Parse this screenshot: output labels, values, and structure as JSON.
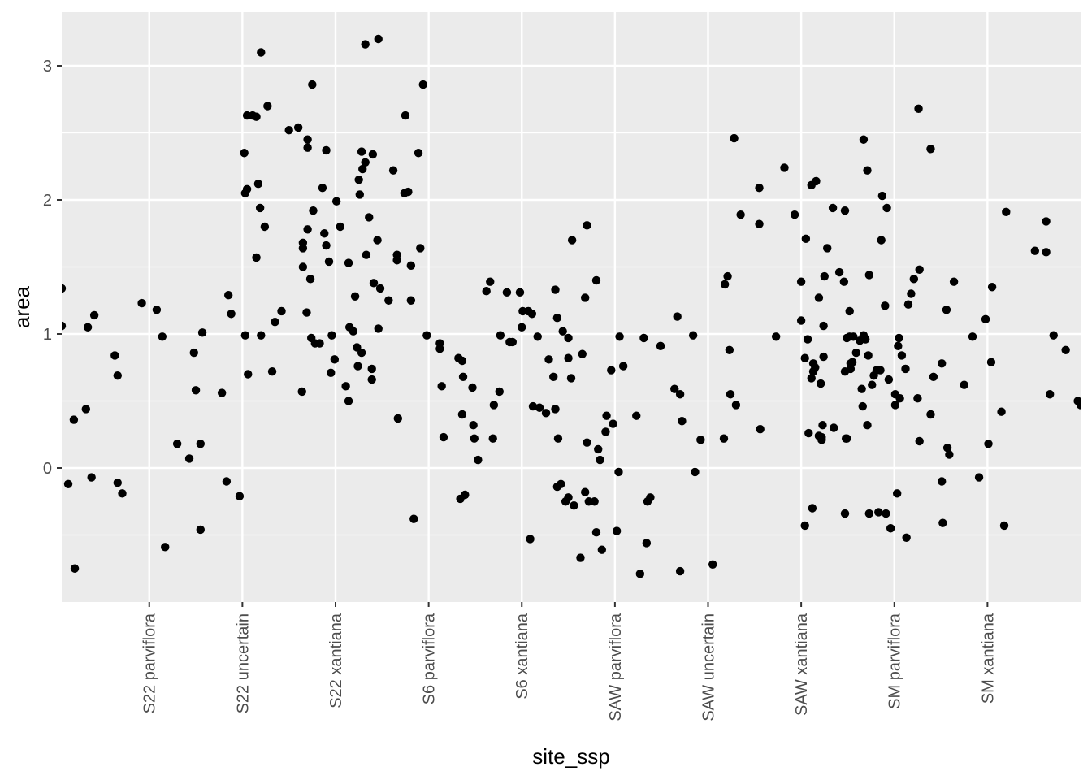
{
  "chart_data": {
    "type": "scatter",
    "title": "",
    "xlabel": "site_ssp",
    "ylabel": "area",
    "categories": [
      "S22 parviflora",
      "S22 uncertain",
      "S22 xantiana",
      "S6 parviflora",
      "S6 xantiana",
      "SAW parviflora",
      "SAW uncertain",
      "SAW xantiana",
      "SM parviflora",
      "SM xantiana"
    ],
    "xlim": [
      0.06,
      11.0
    ],
    "ylim": [
      -1.0,
      3.4
    ],
    "yticks": [
      0,
      1,
      2,
      3
    ],
    "grid": true,
    "legend": "none",
    "colors": {
      "panel": "#ebebeb",
      "grid": "#ffffff",
      "point": "#000000"
    },
    "points": [
      [
        0.06,
        1.34
      ],
      [
        0.06,
        1.06
      ],
      [
        0.13,
        -0.12
      ],
      [
        0.19,
        0.36
      ],
      [
        0.2,
        -0.75
      ],
      [
        0.32,
        0.44
      ],
      [
        0.34,
        1.05
      ],
      [
        0.38,
        -0.07
      ],
      [
        0.41,
        1.14
      ],
      [
        0.63,
        0.84
      ],
      [
        0.66,
        0.69
      ],
      [
        0.66,
        -0.11
      ],
      [
        0.71,
        -0.19
      ],
      [
        0.92,
        1.23
      ],
      [
        1.08,
        1.18
      ],
      [
        1.14,
        0.98
      ],
      [
        1.17,
        -0.59
      ],
      [
        1.3,
        0.18
      ],
      [
        1.43,
        0.07
      ],
      [
        1.48,
        0.86
      ],
      [
        1.5,
        0.58
      ],
      [
        1.55,
        0.18
      ],
      [
        1.55,
        -0.46
      ],
      [
        1.57,
        1.01
      ],
      [
        1.78,
        0.56
      ],
      [
        1.83,
        -0.1
      ],
      [
        1.85,
        1.29
      ],
      [
        1.88,
        1.15
      ],
      [
        1.97,
        -0.21
      ],
      [
        2.02,
        2.35
      ],
      [
        2.03,
        0.99
      ],
      [
        2.03,
        2.05
      ],
      [
        2.05,
        2.08
      ],
      [
        2.05,
        2.63
      ],
      [
        2.06,
        0.7
      ],
      [
        2.11,
        2.63
      ],
      [
        2.15,
        2.62
      ],
      [
        2.15,
        1.57
      ],
      [
        2.17,
        2.12
      ],
      [
        2.19,
        1.94
      ],
      [
        2.2,
        3.1
      ],
      [
        2.2,
        0.99
      ],
      [
        2.24,
        1.8
      ],
      [
        2.27,
        2.7
      ],
      [
        2.32,
        0.72
      ],
      [
        2.35,
        1.09
      ],
      [
        2.42,
        1.17
      ],
      [
        2.5,
        2.52
      ],
      [
        2.6,
        2.54
      ],
      [
        2.64,
        0.57
      ],
      [
        2.65,
        1.68
      ],
      [
        2.65,
        1.64
      ],
      [
        2.65,
        1.5
      ],
      [
        2.69,
        1.16
      ],
      [
        2.7,
        1.78
      ],
      [
        2.7,
        2.39
      ],
      [
        2.7,
        2.45
      ],
      [
        2.73,
        1.41
      ],
      [
        2.74,
        0.97
      ],
      [
        2.75,
        2.86
      ],
      [
        2.76,
        1.92
      ],
      [
        2.78,
        0.93
      ],
      [
        2.83,
        0.93
      ],
      [
        2.86,
        2.09
      ],
      [
        2.88,
        1.75
      ],
      [
        2.9,
        1.66
      ],
      [
        2.9,
        2.37
      ],
      [
        2.93,
        1.54
      ],
      [
        2.95,
        0.71
      ],
      [
        2.96,
        0.99
      ],
      [
        2.99,
        0.81
      ],
      [
        3.01,
        1.99
      ],
      [
        3.05,
        1.8
      ],
      [
        3.11,
        0.61
      ],
      [
        3.14,
        1.53
      ],
      [
        3.14,
        0.5
      ],
      [
        3.15,
        1.05
      ],
      [
        3.19,
        1.02
      ],
      [
        3.21,
        1.28
      ],
      [
        3.23,
        0.9
      ],
      [
        3.24,
        0.76
      ],
      [
        3.25,
        2.15
      ],
      [
        3.26,
        2.04
      ],
      [
        3.28,
        0.86
      ],
      [
        3.28,
        2.36
      ],
      [
        3.29,
        2.23
      ],
      [
        3.32,
        2.28
      ],
      [
        3.32,
        3.16
      ],
      [
        3.33,
        1.59
      ],
      [
        3.36,
        1.87
      ],
      [
        3.39,
        0.74
      ],
      [
        3.39,
        0.66
      ],
      [
        3.4,
        2.34
      ],
      [
        3.41,
        1.38
      ],
      [
        3.45,
        1.7
      ],
      [
        3.46,
        1.04
      ],
      [
        3.46,
        3.2
      ],
      [
        3.48,
        1.34
      ],
      [
        3.57,
        1.25
      ],
      [
        3.62,
        2.22
      ],
      [
        3.66,
        1.59
      ],
      [
        3.66,
        1.55
      ],
      [
        3.67,
        0.37
      ],
      [
        3.74,
        2.05
      ],
      [
        3.75,
        2.63
      ],
      [
        3.78,
        2.06
      ],
      [
        3.81,
        1.51
      ],
      [
        3.81,
        1.25
      ],
      [
        3.84,
        -0.38
      ],
      [
        3.89,
        2.35
      ],
      [
        3.91,
        1.64
      ],
      [
        3.94,
        2.86
      ],
      [
        3.98,
        0.99
      ],
      [
        4.12,
        0.93
      ],
      [
        4.12,
        0.89
      ],
      [
        4.14,
        0.61
      ],
      [
        4.16,
        0.23
      ],
      [
        4.32,
        0.82
      ],
      [
        4.34,
        -0.23
      ],
      [
        4.36,
        0.8
      ],
      [
        4.36,
        0.4
      ],
      [
        4.37,
        0.68
      ],
      [
        4.39,
        -0.2
      ],
      [
        4.47,
        0.6
      ],
      [
        4.48,
        0.32
      ],
      [
        4.49,
        0.22
      ],
      [
        4.53,
        0.06
      ],
      [
        4.62,
        1.32
      ],
      [
        4.66,
        1.39
      ],
      [
        4.69,
        0.22
      ],
      [
        4.7,
        0.47
      ],
      [
        4.76,
        0.57
      ],
      [
        4.77,
        0.99
      ],
      [
        4.84,
        1.31
      ],
      [
        4.87,
        0.94
      ],
      [
        4.9,
        0.94
      ],
      [
        4.98,
        1.31
      ],
      [
        5.0,
        1.05
      ],
      [
        5.01,
        1.17
      ],
      [
        5.07,
        1.17
      ],
      [
        5.09,
        -0.53
      ],
      [
        5.11,
        1.15
      ],
      [
        5.12,
        0.46
      ],
      [
        5.17,
        0.98
      ],
      [
        5.19,
        0.45
      ],
      [
        5.26,
        0.41
      ],
      [
        5.29,
        0.81
      ],
      [
        5.34,
        0.68
      ],
      [
        5.36,
        1.33
      ],
      [
        5.36,
        0.44
      ],
      [
        5.38,
        1.12
      ],
      [
        5.38,
        -0.14
      ],
      [
        5.39,
        0.22
      ],
      [
        5.42,
        -0.12
      ],
      [
        5.44,
        1.02
      ],
      [
        5.47,
        -0.25
      ],
      [
        5.5,
        0.97
      ],
      [
        5.5,
        0.82
      ],
      [
        5.5,
        -0.22
      ],
      [
        5.53,
        0.67
      ],
      [
        5.54,
        1.7
      ],
      [
        5.56,
        -0.28
      ],
      [
        5.63,
        -0.67
      ],
      [
        5.65,
        0.85
      ],
      [
        5.68,
        -0.18
      ],
      [
        5.68,
        1.27
      ],
      [
        5.7,
        1.81
      ],
      [
        5.7,
        0.19
      ],
      [
        5.72,
        -0.25
      ],
      [
        5.78,
        -0.25
      ],
      [
        5.8,
        1.4
      ],
      [
        5.8,
        -0.48
      ],
      [
        5.82,
        0.14
      ],
      [
        5.84,
        0.06
      ],
      [
        5.86,
        -0.61
      ],
      [
        5.9,
        0.27
      ],
      [
        5.91,
        0.39
      ],
      [
        5.96,
        0.73
      ],
      [
        5.98,
        0.33
      ],
      [
        6.02,
        -0.47
      ],
      [
        6.04,
        -0.03
      ],
      [
        6.05,
        0.98
      ],
      [
        6.09,
        0.76
      ],
      [
        6.23,
        0.39
      ],
      [
        6.27,
        -0.79
      ],
      [
        6.31,
        0.97
      ],
      [
        6.34,
        -0.56
      ],
      [
        6.35,
        -0.25
      ],
      [
        6.38,
        -0.22
      ],
      [
        6.49,
        0.91
      ],
      [
        6.64,
        0.59
      ],
      [
        6.67,
        1.13
      ],
      [
        6.7,
        0.55
      ],
      [
        6.7,
        -0.77
      ],
      [
        6.72,
        0.35
      ],
      [
        6.84,
        0.99
      ],
      [
        6.86,
        -0.03
      ],
      [
        6.92,
        0.21
      ],
      [
        7.05,
        -0.72
      ],
      [
        7.17,
        0.22
      ],
      [
        7.18,
        1.37
      ],
      [
        7.21,
        1.43
      ],
      [
        7.23,
        0.88
      ],
      [
        7.24,
        0.55
      ],
      [
        7.28,
        2.46
      ],
      [
        7.3,
        0.47
      ],
      [
        7.35,
        1.89
      ],
      [
        7.55,
        2.09
      ],
      [
        7.55,
        1.82
      ],
      [
        7.56,
        0.29
      ],
      [
        7.73,
        0.98
      ],
      [
        7.82,
        2.24
      ],
      [
        7.93,
        1.89
      ],
      [
        8.0,
        1.1
      ],
      [
        8.0,
        1.39
      ],
      [
        8.04,
        -0.43
      ],
      [
        8.04,
        0.82
      ],
      [
        8.05,
        1.71
      ],
      [
        8.07,
        0.96
      ],
      [
        8.08,
        0.26
      ],
      [
        8.11,
        2.11
      ],
      [
        8.11,
        0.67
      ],
      [
        8.12,
        -0.3
      ],
      [
        8.13,
        0.78
      ],
      [
        8.13,
        0.72
      ],
      [
        8.15,
        0.75
      ],
      [
        8.16,
        2.14
      ],
      [
        8.19,
        0.24
      ],
      [
        8.19,
        1.27
      ],
      [
        8.21,
        0.63
      ],
      [
        8.22,
        0.23
      ],
      [
        8.22,
        0.21
      ],
      [
        8.23,
        0.32
      ],
      [
        8.24,
        0.83
      ],
      [
        8.24,
        1.06
      ],
      [
        8.25,
        1.43
      ],
      [
        8.28,
        1.64
      ],
      [
        8.34,
        1.94
      ],
      [
        8.35,
        0.3
      ],
      [
        8.41,
        1.46
      ],
      [
        8.46,
        1.39
      ],
      [
        8.47,
        1.92
      ],
      [
        8.47,
        0.72
      ],
      [
        8.47,
        -0.34
      ],
      [
        8.48,
        0.22
      ],
      [
        8.49,
        0.22
      ],
      [
        8.49,
        0.97
      ],
      [
        8.52,
        0.98
      ],
      [
        8.52,
        1.17
      ],
      [
        8.53,
        0.74
      ],
      [
        8.53,
        0.78
      ],
      [
        8.55,
        0.79
      ],
      [
        8.56,
        0.98
      ],
      [
        8.59,
        0.86
      ],
      [
        8.63,
        0.95
      ],
      [
        8.65,
        0.59
      ],
      [
        8.66,
        0.46
      ],
      [
        8.67,
        0.99
      ],
      [
        8.67,
        2.45
      ],
      [
        8.69,
        0.96
      ],
      [
        8.71,
        0.32
      ],
      [
        8.71,
        2.22
      ],
      [
        8.72,
        0.84
      ],
      [
        8.73,
        -0.34
      ],
      [
        8.73,
        1.44
      ],
      [
        8.76,
        0.62
      ],
      [
        8.78,
        0.69
      ],
      [
        8.81,
        0.73
      ],
      [
        8.83,
        -0.33
      ],
      [
        8.85,
        0.73
      ],
      [
        8.86,
        1.7
      ],
      [
        8.87,
        2.03
      ],
      [
        8.9,
        1.21
      ],
      [
        8.91,
        -0.34
      ],
      [
        8.92,
        1.94
      ],
      [
        8.94,
        0.66
      ],
      [
        8.96,
        -0.45
      ],
      [
        9.01,
        0.55
      ],
      [
        9.01,
        0.47
      ],
      [
        9.03,
        -0.19
      ],
      [
        9.04,
        0.91
      ],
      [
        9.05,
        0.97
      ],
      [
        9.06,
        0.52
      ],
      [
        9.08,
        0.84
      ],
      [
        9.12,
        0.74
      ],
      [
        9.13,
        -0.52
      ],
      [
        9.15,
        1.22
      ],
      [
        9.18,
        1.3
      ],
      [
        9.21,
        1.41
      ],
      [
        9.25,
        0.52
      ],
      [
        9.26,
        2.68
      ],
      [
        9.27,
        0.2
      ],
      [
        9.27,
        1.48
      ],
      [
        9.39,
        2.38
      ],
      [
        9.39,
        0.4
      ],
      [
        9.42,
        0.68
      ],
      [
        9.51,
        0.78
      ],
      [
        9.51,
        -0.1
      ],
      [
        9.52,
        -0.41
      ],
      [
        9.56,
        1.18
      ],
      [
        9.57,
        0.15
      ],
      [
        9.59,
        0.1
      ],
      [
        9.64,
        1.39
      ],
      [
        9.75,
        0.62
      ],
      [
        9.84,
        0.98
      ],
      [
        9.91,
        -0.07
      ],
      [
        9.98,
        1.11
      ],
      [
        10.01,
        0.18
      ],
      [
        10.04,
        0.79
      ],
      [
        10.05,
        1.35
      ],
      [
        10.15,
        0.42
      ],
      [
        10.18,
        -0.43
      ],
      [
        10.2,
        1.91
      ],
      [
        10.51,
        1.62
      ],
      [
        10.63,
        1.84
      ],
      [
        10.63,
        1.61
      ],
      [
        10.67,
        0.55
      ],
      [
        10.71,
        0.99
      ],
      [
        10.84,
        0.88
      ],
      [
        10.97,
        0.5
      ],
      [
        11.0,
        0.47
      ]
    ]
  }
}
